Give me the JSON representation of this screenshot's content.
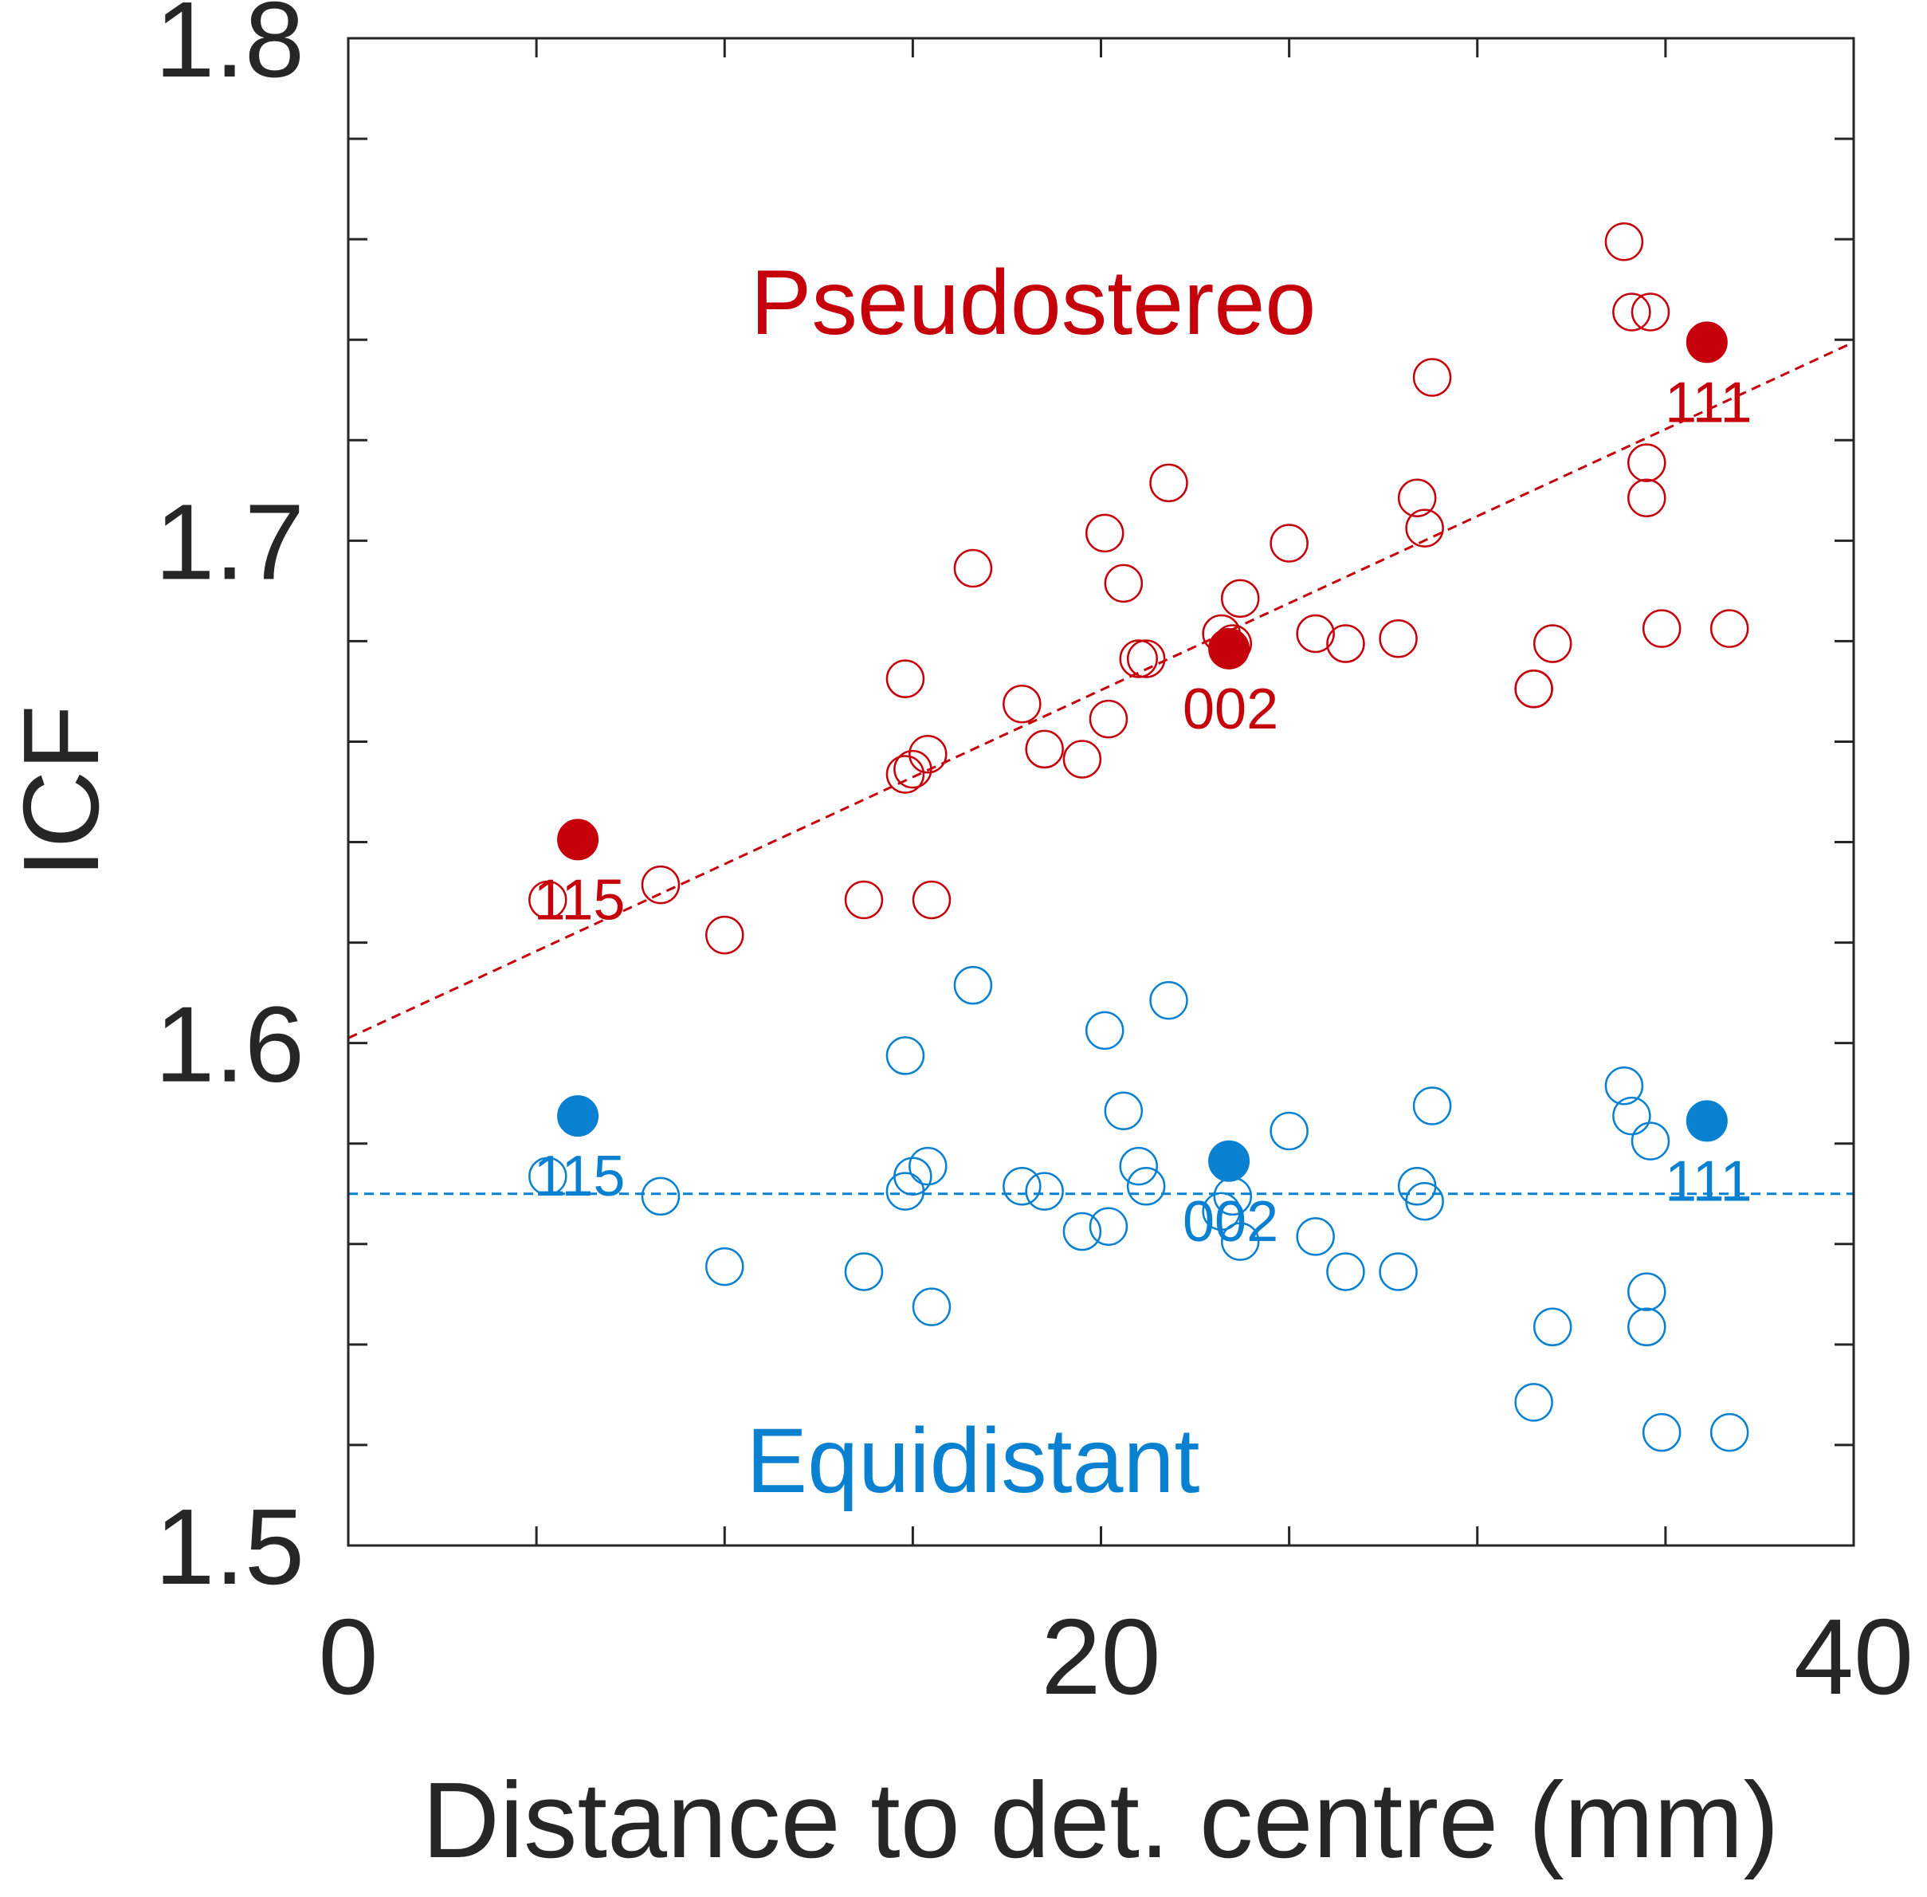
{
  "chart_data": {
    "type": "scatter",
    "xlabel": "Distance to det. centre (mm)",
    "ylabel": "ICF",
    "xlim": [
      0,
      40
    ],
    "ylim": [
      1.5,
      1.8
    ],
    "xticks": [
      0,
      20,
      40
    ],
    "xtick_labels": [
      "0",
      "20",
      "40"
    ],
    "yticks": [
      1.5,
      1.6,
      1.7,
      1.8
    ],
    "ytick_labels": [
      "1.5",
      "1.6",
      "1.7",
      "1.8"
    ],
    "x_minor_ticks": [
      5,
      10,
      15,
      25,
      30,
      35
    ],
    "y_minor_ticks": [
      1.52,
      1.54,
      1.56,
      1.58,
      1.62,
      1.64,
      1.66,
      1.68,
      1.72,
      1.74,
      1.76,
      1.78
    ],
    "grid": false,
    "colors": {
      "pseudo": "#c5000b",
      "equi": "#0a80d0",
      "axis": "#262626"
    },
    "series": [
      {
        "name": "Pseudostereo",
        "label": "Pseudostereo",
        "color": "#c5000b",
        "open_points": [
          [
            5.3,
            1.6285
          ],
          [
            8.3,
            1.6315
          ],
          [
            10.0,
            1.6215
          ],
          [
            13.7,
            1.6285
          ],
          [
            14.8,
            1.6725
          ],
          [
            14.8,
            1.6535
          ],
          [
            15.0,
            1.6545
          ],
          [
            15.4,
            1.6575
          ],
          [
            15.5,
            1.6285
          ],
          [
            16.6,
            1.6945
          ],
          [
            17.9,
            1.6675
          ],
          [
            18.5,
            1.6585
          ],
          [
            19.5,
            1.6565
          ],
          [
            20.1,
            1.7015
          ],
          [
            20.2,
            1.6645
          ],
          [
            20.6,
            1.6915
          ],
          [
            21.0,
            1.6765
          ],
          [
            21.2,
            1.6765
          ],
          [
            21.8,
            1.7115
          ],
          [
            23.2,
            1.6815
          ],
          [
            23.5,
            1.6795
          ],
          [
            23.7,
            1.6885
          ],
          [
            25.0,
            1.6995
          ],
          [
            25.7,
            1.6815
          ],
          [
            26.5,
            1.6795
          ],
          [
            27.9,
            1.6805
          ],
          [
            28.4,
            1.7085
          ],
          [
            28.6,
            1.7025
          ],
          [
            28.8,
            1.7325
          ],
          [
            31.5,
            1.6705
          ],
          [
            31.5,
            1.6705
          ],
          [
            32.0,
            1.6795
          ],
          [
            33.9,
            1.7595
          ],
          [
            34.1,
            1.7455
          ],
          [
            34.6,
            1.7455
          ],
          [
            34.5,
            1.7155
          ],
          [
            34.5,
            1.7085
          ],
          [
            34.9,
            1.6825
          ],
          [
            36.7,
            1.6825
          ]
        ],
        "filled_points": [
          {
            "x": 6.1,
            "y": 1.6405,
            "label": "115"
          },
          {
            "x": 23.4,
            "y": 1.6785,
            "label": "002"
          },
          {
            "x": 36.1,
            "y": 1.7395,
            "label": "111"
          }
        ],
        "fit_line": {
          "x": [
            0,
            40
          ],
          "y": [
            1.601,
            1.7395
          ]
        }
      },
      {
        "name": "Equidistant",
        "label": "Equidistant",
        "color": "#0a80d0",
        "open_points": [
          [
            5.3,
            1.5735
          ],
          [
            8.3,
            1.5695
          ],
          [
            10.0,
            1.5555
          ],
          [
            13.7,
            1.5545
          ],
          [
            14.8,
            1.5975
          ],
          [
            14.8,
            1.5705
          ],
          [
            15.0,
            1.5735
          ],
          [
            15.4,
            1.5755
          ],
          [
            15.5,
            1.5475
          ],
          [
            16.6,
            1.6115
          ],
          [
            17.9,
            1.5715
          ],
          [
            18.5,
            1.5705
          ],
          [
            19.5,
            1.5625
          ],
          [
            20.1,
            1.6025
          ],
          [
            20.2,
            1.5635
          ],
          [
            20.6,
            1.5865
          ],
          [
            21.0,
            1.5755
          ],
          [
            21.2,
            1.5715
          ],
          [
            21.8,
            1.6085
          ],
          [
            23.2,
            1.5665
          ],
          [
            23.5,
            1.5695
          ],
          [
            23.7,
            1.5605
          ],
          [
            25.0,
            1.5825
          ],
          [
            25.7,
            1.5615
          ],
          [
            26.5,
            1.5545
          ],
          [
            27.9,
            1.5545
          ],
          [
            28.4,
            1.5715
          ],
          [
            28.6,
            1.5685
          ],
          [
            28.8,
            1.5875
          ],
          [
            31.5,
            1.5285
          ],
          [
            32.0,
            1.5435
          ],
          [
            33.9,
            1.5915
          ],
          [
            34.1,
            1.5855
          ],
          [
            34.6,
            1.5805
          ],
          [
            34.5,
            1.5505
          ],
          [
            34.5,
            1.5435
          ],
          [
            34.9,
            1.5225
          ],
          [
            36.7,
            1.5225
          ]
        ],
        "filled_points": [
          {
            "x": 6.1,
            "y": 1.5855,
            "label": "115"
          },
          {
            "x": 23.4,
            "y": 1.5765,
            "label": "002"
          },
          {
            "x": 36.1,
            "y": 1.5845,
            "label": "111"
          }
        ],
        "fit_line": {
          "x": [
            0,
            40
          ],
          "y": [
            1.57,
            1.57
          ]
        }
      }
    ],
    "annotations": [
      {
        "text": "Pseudostereo",
        "series": 0,
        "x": 18.2,
        "y": 1.7475
      },
      {
        "text": "Equidistant",
        "series": 1,
        "x": 16.6,
        "y": 1.517
      }
    ]
  }
}
